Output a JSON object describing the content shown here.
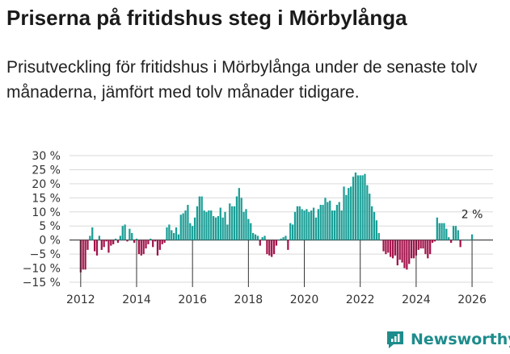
{
  "header": {
    "title": "Priserna på fritidshus steg i Mörbylånga",
    "subtitle": "Prisutveckling för fritidshus i Mörbylånga under de senaste tolv månaderna, jämfört med tolv månader tidigare."
  },
  "brand": {
    "name": "Newsworthy",
    "icon": "newsworthy-logo-icon"
  },
  "colors": {
    "positive": "#1a9e96",
    "negative": "#a3144c",
    "grid": "#d9d9d9",
    "axis": "#333333"
  },
  "chart_data": {
    "type": "bar",
    "title": "Priserna på fritidshus steg i Mörbylånga",
    "xlabel": "",
    "ylabel": "",
    "ylim": [
      -15,
      30
    ],
    "xlim": [
      2011.6,
      2026.75
    ],
    "y_ticks": [
      "30 %",
      "25 %",
      "20 %",
      "15 %",
      "10 %",
      "5 %",
      "0 %",
      "−5 %",
      "−10 %",
      "−15 %"
    ],
    "y_tick_values": [
      30,
      25,
      20,
      15,
      10,
      5,
      0,
      -5,
      -10,
      -15
    ],
    "x_ticks": [
      "2012",
      "2014",
      "2016",
      "2018",
      "2020",
      "2022",
      "2024",
      "2026"
    ],
    "x_tick_values": [
      2012,
      2014,
      2016,
      2018,
      2020,
      2022,
      2024,
      2026
    ],
    "start": {
      "year": 2012,
      "month": 1
    },
    "values": [
      -11.5,
      -10.5,
      -10.5,
      -3.5,
      1.5,
      4.5,
      -4,
      -5.5,
      1.5,
      -3.5,
      -2.5,
      -0.5,
      -4.5,
      -2,
      -1.5,
      0.5,
      -1,
      1.5,
      5,
      5.5,
      -0.5,
      4,
      2.5,
      -1,
      0.5,
      -5,
      -5.5,
      -5,
      -3,
      -1.5,
      0.5,
      -2.5,
      -0.5,
      -5.5,
      -3.5,
      -1.5,
      -1,
      4.5,
      5.5,
      3.5,
      2.5,
      4.5,
      2,
      9,
      9.5,
      10.5,
      12.5,
      6,
      5,
      8,
      12,
      15.5,
      15.5,
      10.5,
      10,
      10.5,
      10.5,
      8.5,
      8,
      8.5,
      11.5,
      8,
      10,
      5.5,
      13,
      12,
      12,
      15.5,
      18.5,
      15,
      10,
      11,
      7.5,
      6,
      2.5,
      2,
      1.5,
      -2,
      1,
      1.5,
      -5,
      -5.5,
      -6,
      -5,
      -2,
      0,
      0.5,
      1,
      1.5,
      -3.5,
      6,
      5.5,
      10,
      12,
      12,
      11,
      10.5,
      11,
      10,
      10.5,
      11.5,
      8,
      11,
      12.5,
      12.5,
      15,
      13.5,
      14,
      10.5,
      10.5,
      12.5,
      13.5,
      10.5,
      19,
      16,
      18.5,
      19,
      22.5,
      24,
      23,
      23,
      23,
      23.5,
      19.5,
      16.5,
      12,
      10,
      7,
      2.5,
      0,
      -4,
      -5,
      -4.5,
      -6,
      -6.5,
      -5.5,
      -9,
      -7,
      -8,
      -10,
      -10.5,
      -8.5,
      -6.5,
      -6.5,
      -5.5,
      -3.5,
      -3,
      -3,
      -5,
      -6.5,
      -5,
      -1,
      -0.5,
      8,
      6,
      6,
      6,
      4,
      1,
      -1,
      5,
      5,
      3.5,
      -2.5,
      0,
      0,
      0,
      0,
      2
    ],
    "data_labels": [
      {
        "index": 168,
        "text": "2 %"
      }
    ]
  }
}
